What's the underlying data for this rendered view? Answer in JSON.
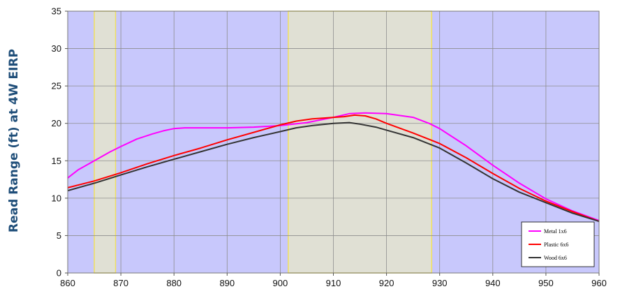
{
  "chart_data": {
    "type": "line",
    "title": "",
    "xlabel": "",
    "ylabel": "Read Range (ft) at 4W EIRP",
    "xlim": [
      860,
      960
    ],
    "ylim": [
      0,
      35
    ],
    "xticks": [
      860,
      870,
      880,
      890,
      900,
      910,
      920,
      930,
      940,
      950,
      960
    ],
    "yticks": [
      0,
      5,
      10,
      15,
      20,
      25,
      30,
      35
    ],
    "grid": true,
    "legend_position": "bottom-right",
    "highlight_bands": [
      {
        "x0": 865,
        "x1": 869
      },
      {
        "x0": 901.5,
        "x1": 928.5
      }
    ],
    "series": [
      {
        "name": "Metal 1x6",
        "color": "#ff00ff",
        "x": [
          860,
          862,
          865,
          868,
          870,
          873,
          876,
          878,
          880,
          882,
          885,
          890,
          895,
          900,
          905,
          910,
          913,
          916,
          920,
          925,
          928,
          930,
          935,
          940,
          945,
          950,
          955,
          960
        ],
        "y": [
          12.7,
          13.8,
          15.0,
          16.2,
          16.9,
          17.9,
          18.6,
          19.0,
          19.3,
          19.4,
          19.4,
          19.4,
          19.5,
          19.7,
          20.1,
          20.8,
          21.3,
          21.4,
          21.3,
          20.8,
          20.0,
          19.3,
          17.0,
          14.4,
          12.0,
          9.9,
          8.3,
          7.0
        ]
      },
      {
        "name": "Plastic 6x6",
        "color": "#ff0000",
        "x": [
          860,
          865,
          870,
          875,
          880,
          885,
          890,
          895,
          900,
          903,
          906,
          908,
          910,
          912,
          914,
          916,
          918,
          920,
          925,
          930,
          935,
          940,
          945,
          950,
          955,
          960
        ],
        "y": [
          11.4,
          12.3,
          13.4,
          14.6,
          15.7,
          16.7,
          17.8,
          18.8,
          19.8,
          20.3,
          20.6,
          20.7,
          20.8,
          20.9,
          21.1,
          21.0,
          20.6,
          20.0,
          18.7,
          17.3,
          15.4,
          13.3,
          11.3,
          9.6,
          8.2,
          6.9
        ]
      },
      {
        "name": "Wood 6x6",
        "color": "#333333",
        "x": [
          860,
          865,
          870,
          875,
          880,
          885,
          890,
          895,
          900,
          903,
          906,
          910,
          913,
          915,
          918,
          920,
          925,
          930,
          935,
          940,
          945,
          950,
          955,
          960
        ],
        "y": [
          11.0,
          12.0,
          13.1,
          14.2,
          15.2,
          16.2,
          17.2,
          18.1,
          18.9,
          19.4,
          19.7,
          20.0,
          20.1,
          19.9,
          19.5,
          19.1,
          18.1,
          16.7,
          14.7,
          12.6,
          10.8,
          9.4,
          8.0,
          6.9
        ]
      }
    ]
  }
}
